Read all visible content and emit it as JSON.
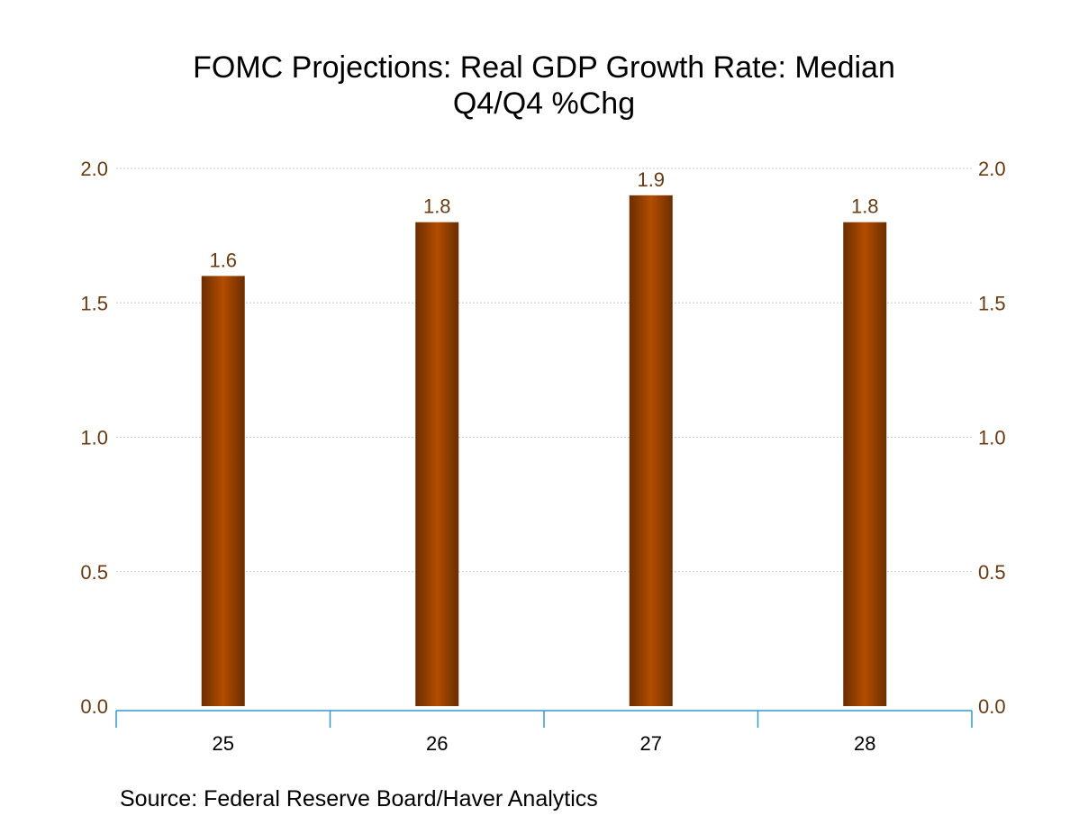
{
  "chart_data": {
    "type": "bar",
    "title": "FOMC Projections: Real GDP Growth Rate: Median",
    "subtitle": "Q4/Q4 %Chg",
    "categories": [
      "25",
      "26",
      "27",
      "28"
    ],
    "values": [
      1.6,
      1.8,
      1.9,
      1.8
    ],
    "data_labels": [
      "1.6",
      "1.8",
      "1.9",
      "1.8"
    ],
    "y_ticks": [
      "0.0",
      "0.5",
      "1.0",
      "1.5",
      "2.0"
    ],
    "y_tick_values": [
      0,
      0.5,
      1.0,
      1.5,
      2.0
    ],
    "ylim": [
      0,
      2.0
    ],
    "grid": true,
    "legend": "none",
    "source": "Source:  Federal Reserve Board/Haver Analytics"
  },
  "colors": {
    "bar_edge": "#6b2e00",
    "bar_center": "#b34d00",
    "tick_label": "#6b3a10",
    "grid": "#c8c8c8",
    "axis": "#3399cc"
  }
}
